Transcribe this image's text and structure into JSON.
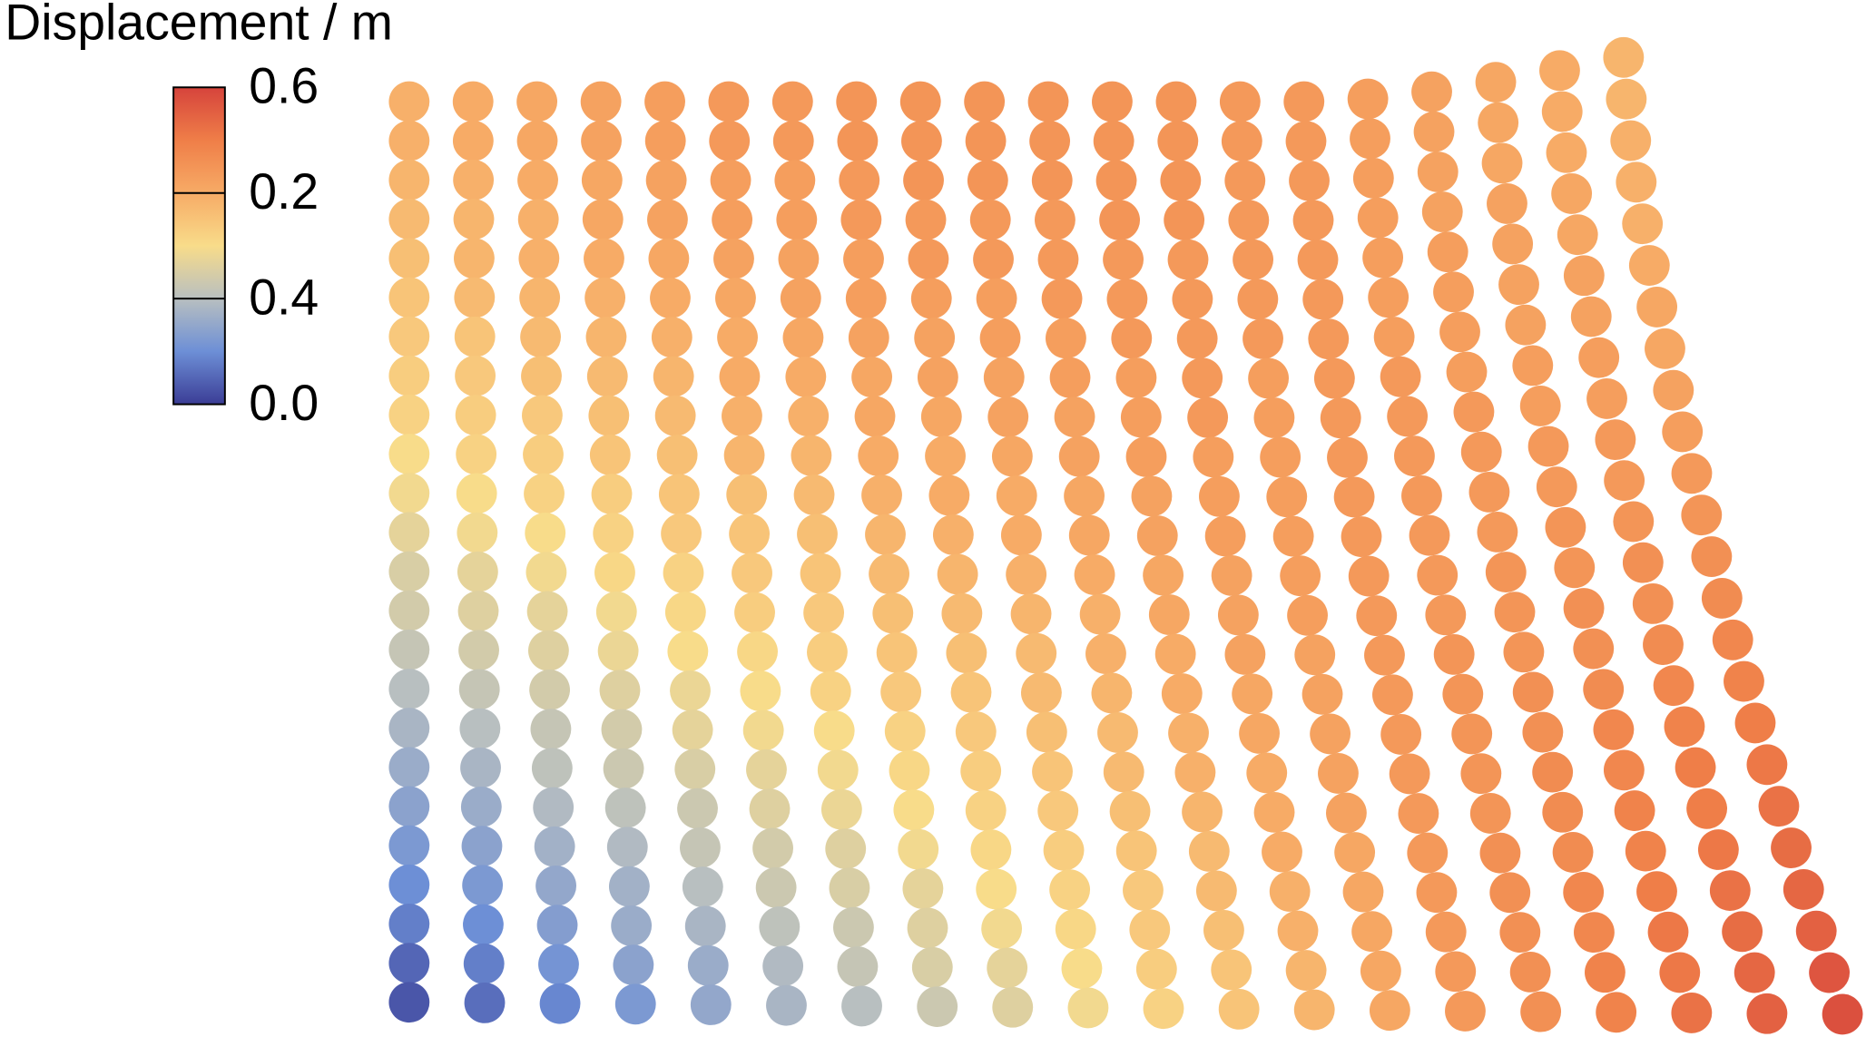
{
  "chart_data": {
    "type": "particles",
    "title": "Displacement / m",
    "colorbar_labels": [
      "0.6",
      "0.2",
      "0.4",
      "0.0"
    ],
    "clim": [
      0,
      0.6
    ],
    "colormap": [
      "#3b3d96",
      "#6d8fd6",
      "#b8bfc0",
      "#f8dc8a",
      "#f7ab66",
      "#ef7e48",
      "#d6443c"
    ],
    "values": [
      [
        0.39,
        0.4,
        0.41,
        0.42,
        0.43,
        0.44,
        0.44,
        0.45,
        0.45,
        0.45,
        0.45,
        0.45,
        0.45,
        0.44,
        0.44,
        0.43,
        0.42,
        0.41,
        0.4,
        0.38
      ],
      [
        0.39,
        0.4,
        0.41,
        0.42,
        0.43,
        0.44,
        0.44,
        0.45,
        0.45,
        0.45,
        0.45,
        0.45,
        0.45,
        0.44,
        0.44,
        0.43,
        0.42,
        0.41,
        0.4,
        0.38
      ],
      [
        0.38,
        0.39,
        0.4,
        0.41,
        0.42,
        0.43,
        0.43,
        0.44,
        0.45,
        0.45,
        0.45,
        0.45,
        0.45,
        0.44,
        0.44,
        0.43,
        0.42,
        0.41,
        0.4,
        0.39
      ],
      [
        0.37,
        0.38,
        0.39,
        0.41,
        0.42,
        0.43,
        0.43,
        0.44,
        0.44,
        0.44,
        0.44,
        0.45,
        0.45,
        0.44,
        0.44,
        0.43,
        0.42,
        0.42,
        0.41,
        0.39
      ],
      [
        0.36,
        0.38,
        0.39,
        0.4,
        0.41,
        0.42,
        0.42,
        0.43,
        0.44,
        0.44,
        0.44,
        0.44,
        0.44,
        0.44,
        0.44,
        0.43,
        0.43,
        0.42,
        0.41,
        0.39
      ],
      [
        0.35,
        0.37,
        0.38,
        0.39,
        0.4,
        0.41,
        0.42,
        0.43,
        0.43,
        0.43,
        0.44,
        0.44,
        0.44,
        0.44,
        0.44,
        0.43,
        0.43,
        0.42,
        0.42,
        0.4
      ],
      [
        0.34,
        0.35,
        0.37,
        0.38,
        0.39,
        0.4,
        0.41,
        0.42,
        0.42,
        0.43,
        0.43,
        0.44,
        0.44,
        0.44,
        0.44,
        0.43,
        0.43,
        0.42,
        0.42,
        0.41
      ],
      [
        0.33,
        0.34,
        0.36,
        0.37,
        0.38,
        0.4,
        0.4,
        0.41,
        0.42,
        0.42,
        0.43,
        0.43,
        0.44,
        0.43,
        0.44,
        0.44,
        0.43,
        0.43,
        0.43,
        0.41
      ],
      [
        0.32,
        0.33,
        0.34,
        0.36,
        0.37,
        0.39,
        0.39,
        0.41,
        0.41,
        0.42,
        0.42,
        0.43,
        0.44,
        0.43,
        0.44,
        0.44,
        0.44,
        0.43,
        0.43,
        0.42
      ],
      [
        0.3,
        0.32,
        0.33,
        0.35,
        0.36,
        0.38,
        0.38,
        0.4,
        0.4,
        0.41,
        0.42,
        0.43,
        0.43,
        0.43,
        0.44,
        0.44,
        0.44,
        0.44,
        0.44,
        0.43
      ],
      [
        0.29,
        0.3,
        0.32,
        0.33,
        0.35,
        0.36,
        0.37,
        0.39,
        0.4,
        0.4,
        0.41,
        0.42,
        0.43,
        0.43,
        0.44,
        0.44,
        0.44,
        0.44,
        0.44,
        0.44
      ],
      [
        0.27,
        0.29,
        0.3,
        0.32,
        0.34,
        0.35,
        0.36,
        0.38,
        0.39,
        0.4,
        0.41,
        0.42,
        0.43,
        0.43,
        0.44,
        0.44,
        0.44,
        0.45,
        0.45,
        0.45
      ],
      [
        0.25,
        0.27,
        0.29,
        0.31,
        0.32,
        0.34,
        0.35,
        0.37,
        0.38,
        0.39,
        0.4,
        0.41,
        0.42,
        0.43,
        0.44,
        0.44,
        0.45,
        0.45,
        0.46,
        0.46
      ],
      [
        0.24,
        0.26,
        0.27,
        0.29,
        0.31,
        0.33,
        0.34,
        0.36,
        0.37,
        0.38,
        0.39,
        0.41,
        0.42,
        0.43,
        0.44,
        0.44,
        0.45,
        0.46,
        0.46,
        0.47
      ],
      [
        0.22,
        0.24,
        0.26,
        0.28,
        0.3,
        0.31,
        0.33,
        0.35,
        0.36,
        0.37,
        0.39,
        0.4,
        0.42,
        0.42,
        0.44,
        0.45,
        0.45,
        0.46,
        0.47,
        0.48
      ],
      [
        0.2,
        0.22,
        0.24,
        0.26,
        0.28,
        0.3,
        0.32,
        0.34,
        0.35,
        0.37,
        0.38,
        0.4,
        0.41,
        0.42,
        0.44,
        0.45,
        0.46,
        0.47,
        0.48,
        0.49
      ],
      [
        0.18,
        0.2,
        0.22,
        0.24,
        0.27,
        0.29,
        0.3,
        0.32,
        0.34,
        0.36,
        0.37,
        0.39,
        0.41,
        0.42,
        0.44,
        0.45,
        0.46,
        0.48,
        0.49,
        0.5
      ],
      [
        0.16,
        0.18,
        0.21,
        0.23,
        0.25,
        0.27,
        0.29,
        0.31,
        0.33,
        0.35,
        0.37,
        0.39,
        0.4,
        0.42,
        0.44,
        0.45,
        0.47,
        0.48,
        0.5,
        0.51
      ],
      [
        0.14,
        0.16,
        0.19,
        0.21,
        0.23,
        0.26,
        0.28,
        0.3,
        0.32,
        0.34,
        0.36,
        0.38,
        0.4,
        0.42,
        0.44,
        0.45,
        0.47,
        0.49,
        0.5,
        0.52
      ],
      [
        0.12,
        0.14,
        0.17,
        0.19,
        0.22,
        0.24,
        0.26,
        0.29,
        0.31,
        0.33,
        0.35,
        0.37,
        0.4,
        0.41,
        0.44,
        0.46,
        0.47,
        0.49,
        0.51,
        0.53
      ],
      [
        0.1,
        0.12,
        0.15,
        0.17,
        0.2,
        0.23,
        0.25,
        0.27,
        0.3,
        0.32,
        0.34,
        0.37,
        0.39,
        0.41,
        0.44,
        0.46,
        0.48,
        0.5,
        0.52,
        0.54
      ],
      [
        0.08,
        0.1,
        0.13,
        0.16,
        0.18,
        0.21,
        0.23,
        0.26,
        0.29,
        0.31,
        0.34,
        0.36,
        0.39,
        0.41,
        0.44,
        0.46,
        0.48,
        0.51,
        0.53,
        0.55
      ],
      [
        0.05,
        0.08,
        0.11,
        0.14,
        0.16,
        0.19,
        0.22,
        0.25,
        0.27,
        0.3,
        0.33,
        0.35,
        0.38,
        0.41,
        0.44,
        0.46,
        0.49,
        0.51,
        0.54,
        0.57
      ],
      [
        0.03,
        0.06,
        0.09,
        0.12,
        0.15,
        0.18,
        0.2,
        0.23,
        0.26,
        0.29,
        0.32,
        0.35,
        0.38,
        0.41,
        0.44,
        0.46,
        0.49,
        0.52,
        0.55,
        0.58
      ]
    ]
  }
}
